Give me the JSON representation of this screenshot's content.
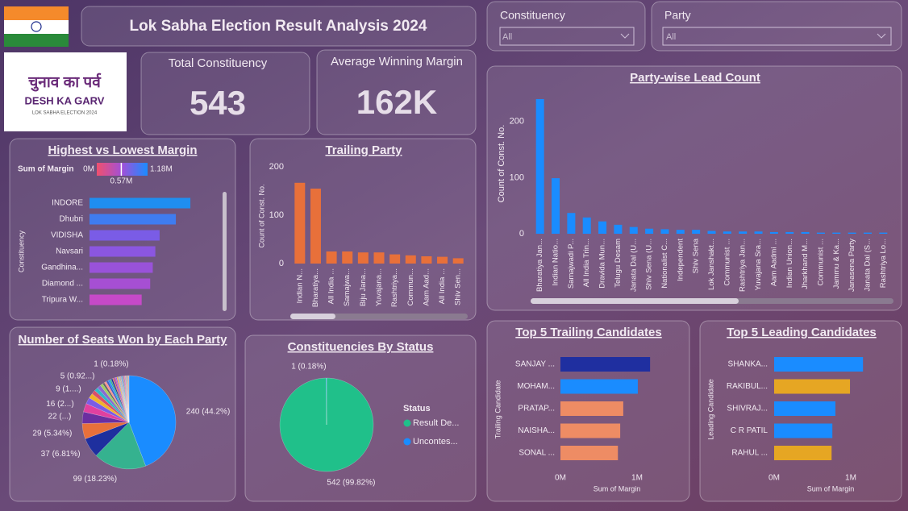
{
  "header": {
    "title": "Lok Sabha Election Result Analysis 2024",
    "logo": {
      "line1": "चुनाव का पर्व",
      "line2": "DESH KA GARV",
      "line3": "LOK SABHA ELECTION 2024"
    }
  },
  "slicers": [
    {
      "label": "Constituency",
      "value": "All"
    },
    {
      "label": "Party",
      "value": "All"
    }
  ],
  "kpis": [
    {
      "label": "Total Constituency",
      "value": "543"
    },
    {
      "label": "Average Winning Margin",
      "value": "162K"
    }
  ],
  "chart_data": [
    {
      "type": "hbar",
      "title": "Highest vs Lowest Margin",
      "ylabel": "Constituency",
      "categories": [
        "INDORE",
        "Dhubri",
        "VIDISHA",
        "Navsari",
        "Gandhina...",
        "Diamond ...",
        "Tripura W..."
      ],
      "values": [
        1.18,
        1.01,
        0.82,
        0.77,
        0.74,
        0.71,
        0.61
      ],
      "colors": [
        "#1f8ef0",
        "#3f7cf0",
        "#7a5ce6",
        "#8b56e0",
        "#9952d9",
        "#a64fd3",
        "#c649c8"
      ],
      "xlim": [
        0,
        1.5
      ],
      "legend": {
        "title": "Sum of Margin",
        "low_color": "#f0506e",
        "mid_color": "#a050d8",
        "high_color": "#1a8cff",
        "min": {
          "value": 0,
          "label": "0M"
        },
        "mid": {
          "value": 0.57,
          "label": "0.57M"
        },
        "max": {
          "value": 1.18,
          "label": "1.18M"
        }
      }
    },
    {
      "type": "bar",
      "title": "Trailing Party",
      "ylabel": "Count of Const. No.",
      "categories": [
        "Indian N...",
        "Bharatiya...",
        "All India ...",
        "Samajwa...",
        "Biju Jana...",
        "Yuvajana...",
        "Rashtriya...",
        "Commun...",
        "Aam Aad...",
        "All India ...",
        "Shiv Sen..."
      ],
      "values": [
        167,
        155,
        25,
        25,
        23,
        23,
        19,
        17,
        15,
        14,
        11
      ],
      "color": "#e8703a",
      "ylim": [
        0,
        220
      ],
      "yticks": [
        0,
        100,
        200
      ]
    },
    {
      "type": "bar",
      "title": "Party-wise Lead Count",
      "ylabel": "Count of Const. No.",
      "categories": [
        "Bharatiya Jan...",
        "Indian Natio...",
        "Samajwadi P...",
        "All India Trin...",
        "Dravida Mun...",
        "Telugu Desam",
        "Janata Dal (U...",
        "Shiv Sena (U...",
        "Nationalist C...",
        "Independent",
        "Shiv Sena",
        "Lok Janshakt...",
        "Communist ...",
        "Rashtriya Jan...",
        "Yuvajana Sra...",
        "Aam Aadmi ...",
        "Indian Union...",
        "Jharkhand M...",
        "Communist ...",
        "Jammu & Ka...",
        "Janasena Party",
        "Janata Dal (S...",
        "Rashtriya Lo..."
      ],
      "values": [
        240,
        99,
        37,
        29,
        22,
        16,
        12,
        9,
        8,
        7,
        7,
        5,
        4,
        4,
        4,
        3,
        3,
        3,
        2,
        2,
        2,
        2,
        2
      ],
      "color": "#1a8cff",
      "ylim": [
        0,
        250
      ],
      "yticks": [
        0,
        100,
        200
      ]
    },
    {
      "type": "hbar",
      "title": "Top 5 Trailing Candidates",
      "ylabel": "Trailing Candidate",
      "xlabel": "Sum of Margin",
      "categories": [
        "SANJAY ...",
        "MOHAM...",
        "PRATAP...",
        "NAISHA...",
        "SONAL ..."
      ],
      "values": [
        1.17,
        1.01,
        0.82,
        0.78,
        0.75
      ],
      "colors": [
        "#1f2fa0",
        "#1a8cff",
        "#ee8c64",
        "#ee8c64",
        "#ee8c64"
      ],
      "xlim": [
        0,
        1.4
      ],
      "xticks": [
        {
          "value": 0,
          "label": "0M"
        },
        {
          "value": 1,
          "label": "1M"
        }
      ]
    },
    {
      "type": "hbar",
      "title": "Top 5 Leading Candidates",
      "ylabel": "Leading Candidate",
      "xlabel": "Sum of Margin",
      "categories": [
        "SHANKA...",
        "RAKIBUL...",
        "SHIVRAJ...",
        "C R PATIL",
        "RAHUL ..."
      ],
      "values": [
        1.16,
        0.99,
        0.8,
        0.76,
        0.75
      ],
      "colors": [
        "#1a8cff",
        "#e6a623",
        "#1a8cff",
        "#1a8cff",
        "#e6a623"
      ],
      "xlim": [
        0,
        1.4
      ],
      "xticks": [
        {
          "value": 0,
          "label": "0M"
        },
        {
          "value": 1,
          "label": "1M"
        }
      ]
    },
    {
      "type": "pie",
      "title": "Number of Seats Won by Each Party",
      "values": [
        240,
        99,
        37,
        29,
        22,
        16,
        12,
        9,
        8,
        7,
        7,
        5,
        4,
        4,
        4,
        3,
        3,
        3,
        2,
        2,
        2,
        2,
        2,
        1,
        1,
        1,
        1,
        1,
        1,
        1,
        1,
        1,
        1,
        1,
        1,
        1,
        1,
        1,
        1,
        1,
        1,
        1,
        1,
        1
      ],
      "value_labels": [
        "240 (44.2%)",
        "99 (18.23%)",
        "37 (6.81%)",
        "29 (5.34%)",
        "22 (...)",
        "16 (2...)",
        null,
        "9 (1....)",
        null,
        null,
        null,
        "5 (0.92...)",
        null,
        null,
        null,
        null,
        null,
        null,
        null,
        null,
        null,
        null,
        null,
        null,
        null,
        null,
        null,
        null,
        null,
        null,
        null,
        null,
        null,
        null,
        null,
        null,
        null,
        null,
        null,
        null,
        null,
        null,
        null,
        "1 (0.18%)"
      ],
      "colors": [
        "#1a8cff",
        "#35b28f",
        "#1e2f9e",
        "#e8703a",
        "#6b2fa0",
        "#e040a0",
        "#7a5ce6",
        "#f0b429",
        "#d94f6a",
        "#2fb8c8",
        "#8a6ad0",
        "#a0d060",
        "#666666",
        "#ff9090",
        "#4060c0"
      ]
    },
    {
      "type": "pie",
      "title": "Constituencies By Status",
      "categories": [
        "Result De...",
        "Uncontes..."
      ],
      "values": [
        542,
        1
      ],
      "value_labels": [
        "542 (99.82%)",
        "1 (0.18%)"
      ],
      "colors": [
        "#20c08a",
        "#1a8cff"
      ],
      "legend_title": "Status"
    }
  ]
}
